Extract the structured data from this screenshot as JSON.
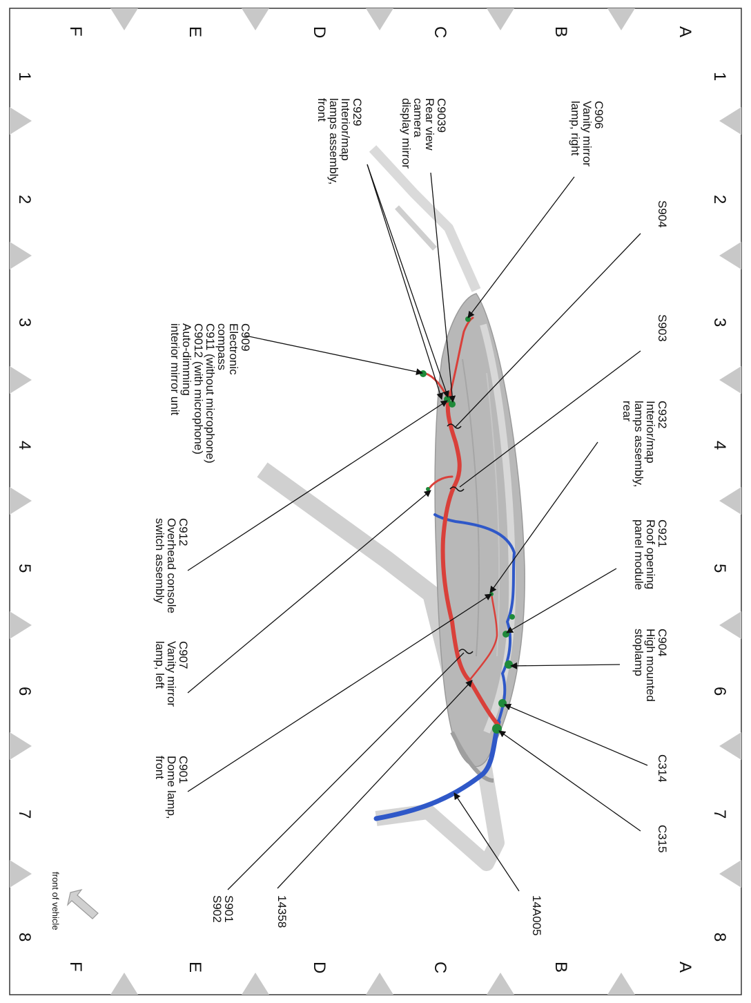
{
  "grid": {
    "rows": [
      "A",
      "B",
      "C",
      "D",
      "E",
      "F"
    ],
    "columns": [
      "1",
      "2",
      "3",
      "4",
      "5",
      "6",
      "7",
      "8"
    ]
  },
  "labels": [
    {
      "id": "c906",
      "lines": [
        "C906",
        "Vanity mirror",
        "lamp, right"
      ]
    },
    {
      "id": "c9039",
      "lines": [
        "C9039",
        "Rear view",
        "camera",
        "display mirror"
      ]
    },
    {
      "id": "c929",
      "lines": [
        "C929",
        "Interior/map",
        "lamps assembly,",
        "front"
      ]
    },
    {
      "id": "s904",
      "lines": [
        "S904"
      ]
    },
    {
      "id": "s903",
      "lines": [
        "S903"
      ]
    },
    {
      "id": "c909",
      "lines": [
        "C909",
        "Electronic",
        "compass",
        "C911  (without microphone)",
        "C9012  (with microphone)",
        "Auto-dimming",
        "interior mirror unit"
      ]
    },
    {
      "id": "c932",
      "lines": [
        "C932",
        "Interior/map",
        "lamps assembly,",
        "rear"
      ]
    },
    {
      "id": "c921",
      "lines": [
        "C921",
        "Roof opening",
        "panel module"
      ]
    },
    {
      "id": "c912",
      "lines": [
        "C912",
        "Overhead console",
        "switch assembly"
      ]
    },
    {
      "id": "c904",
      "lines": [
        "C904",
        "High mounted",
        "stoplamp"
      ]
    },
    {
      "id": "c907",
      "lines": [
        "C907",
        "Vanity mirror",
        "lamp, left"
      ]
    },
    {
      "id": "c901",
      "lines": [
        "C901",
        "Dome lamp,",
        "front"
      ]
    },
    {
      "id": "c314",
      "lines": [
        "C314"
      ]
    },
    {
      "id": "c315",
      "lines": [
        "C315"
      ]
    },
    {
      "id": "s901",
      "lines": [
        "S901",
        "S902"
      ]
    },
    {
      "id": "14358",
      "lines": [
        "14358"
      ]
    },
    {
      "id": "14a005",
      "lines": [
        "14A005"
      ]
    }
  ],
  "front_of_vehicle": "front of vehicle",
  "colors": {
    "harness_red": "#d9403a",
    "harness_blue": "#2f58c8",
    "connector_green": "#1f8a3a",
    "roof": "#b8b8b8",
    "frame_marker": "#c8c8c8"
  }
}
